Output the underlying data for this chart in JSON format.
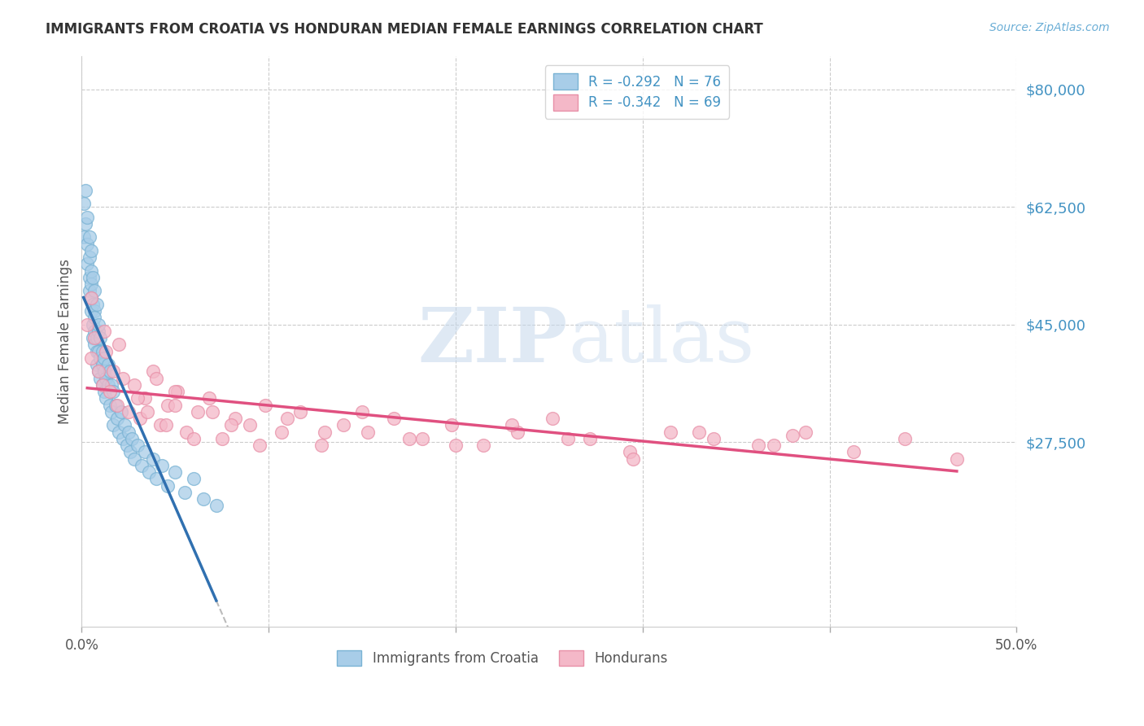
{
  "title": "IMMIGRANTS FROM CROATIA VS HONDURAN MEDIAN FEMALE EARNINGS CORRELATION CHART",
  "source": "Source: ZipAtlas.com",
  "ylabel": "Median Female Earnings",
  "legend_entry1": "R = -0.292   N = 76",
  "legend_entry2": "R = -0.342   N = 69",
  "legend_label1": "Immigrants from Croatia",
  "legend_label2": "Hondurans",
  "color_blue_fill": "#a8cde8",
  "color_blue_edge": "#7ab3d4",
  "color_pink_fill": "#f4b8c8",
  "color_pink_edge": "#e890a8",
  "color_blue_line": "#3070b0",
  "color_pink_line": "#e05080",
  "color_dash": "#bbbbbb",
  "watermark_color": "#ccddf0",
  "background_color": "#ffffff",
  "grid_color": "#cccccc",
  "title_color": "#333333",
  "source_color": "#6baed6",
  "axis_tick_color": "#4393c3",
  "xlim": [
    0.0,
    0.5
  ],
  "ylim": [
    0,
    85000
  ],
  "ytick_vals": [
    27500,
    45000,
    62500,
    80000
  ],
  "ytick_labels": [
    "$27,500",
    "$45,000",
    "$62,500",
    "$80,000"
  ],
  "xtick_vals": [
    0.0,
    0.1,
    0.2,
    0.3,
    0.4,
    0.5
  ],
  "croatia_x": [
    0.001,
    0.001,
    0.002,
    0.002,
    0.003,
    0.003,
    0.003,
    0.004,
    0.004,
    0.004,
    0.004,
    0.005,
    0.005,
    0.005,
    0.005,
    0.005,
    0.006,
    0.006,
    0.006,
    0.006,
    0.007,
    0.007,
    0.007,
    0.007,
    0.007,
    0.008,
    0.008,
    0.008,
    0.008,
    0.009,
    0.009,
    0.009,
    0.009,
    0.01,
    0.01,
    0.01,
    0.011,
    0.011,
    0.011,
    0.012,
    0.012,
    0.012,
    0.013,
    0.013,
    0.014,
    0.014,
    0.015,
    0.015,
    0.016,
    0.016,
    0.017,
    0.017,
    0.018,
    0.019,
    0.02,
    0.021,
    0.022,
    0.023,
    0.024,
    0.025,
    0.026,
    0.027,
    0.028,
    0.03,
    0.032,
    0.034,
    0.036,
    0.038,
    0.04,
    0.043,
    0.046,
    0.05,
    0.055,
    0.06,
    0.065,
    0.072
  ],
  "croatia_y": [
    63000,
    58000,
    65000,
    60000,
    57000,
    54000,
    61000,
    55000,
    52000,
    58000,
    50000,
    53000,
    49000,
    56000,
    47000,
    51000,
    48000,
    45000,
    52000,
    43000,
    47000,
    44000,
    50000,
    42000,
    46000,
    43000,
    41000,
    48000,
    39000,
    44000,
    41000,
    38000,
    45000,
    40000,
    37000,
    43000,
    39000,
    36000,
    41000,
    38000,
    35000,
    40000,
    37000,
    34000,
    39000,
    36000,
    38000,
    33000,
    36000,
    32000,
    35000,
    30000,
    33000,
    31000,
    29000,
    32000,
    28000,
    30000,
    27000,
    29000,
    26000,
    28000,
    25000,
    27000,
    24000,
    26000,
    23000,
    25000,
    22000,
    24000,
    21000,
    23000,
    20000,
    22000,
    19000,
    18000
  ],
  "honduran_x": [
    0.003,
    0.005,
    0.007,
    0.009,
    0.011,
    0.013,
    0.015,
    0.017,
    0.019,
    0.022,
    0.025,
    0.028,
    0.031,
    0.034,
    0.038,
    0.042,
    0.046,
    0.051,
    0.056,
    0.062,
    0.068,
    0.075,
    0.082,
    0.09,
    0.098,
    0.107,
    0.117,
    0.128,
    0.14,
    0.153,
    0.167,
    0.182,
    0.198,
    0.215,
    0.233,
    0.252,
    0.272,
    0.293,
    0.315,
    0.338,
    0.362,
    0.387,
    0.413,
    0.44,
    0.468,
    0.03,
    0.035,
    0.04,
    0.045,
    0.05,
    0.06,
    0.07,
    0.08,
    0.095,
    0.11,
    0.13,
    0.15,
    0.175,
    0.2,
    0.23,
    0.26,
    0.295,
    0.33,
    0.37,
    0.005,
    0.012,
    0.02,
    0.05,
    0.38
  ],
  "honduran_y": [
    45000,
    40000,
    43000,
    38000,
    36000,
    41000,
    35000,
    38000,
    33000,
    37000,
    32000,
    36000,
    31000,
    34000,
    38000,
    30000,
    33000,
    35000,
    29000,
    32000,
    34000,
    28000,
    31000,
    30000,
    33000,
    29000,
    32000,
    27000,
    30000,
    29000,
    31000,
    28000,
    30000,
    27000,
    29000,
    31000,
    28000,
    26000,
    29000,
    28000,
    27000,
    29000,
    26000,
    28000,
    25000,
    34000,
    32000,
    37000,
    30000,
    35000,
    28000,
    32000,
    30000,
    27000,
    31000,
    29000,
    32000,
    28000,
    27000,
    30000,
    28000,
    25000,
    29000,
    27000,
    49000,
    44000,
    42000,
    33000,
    28500
  ]
}
